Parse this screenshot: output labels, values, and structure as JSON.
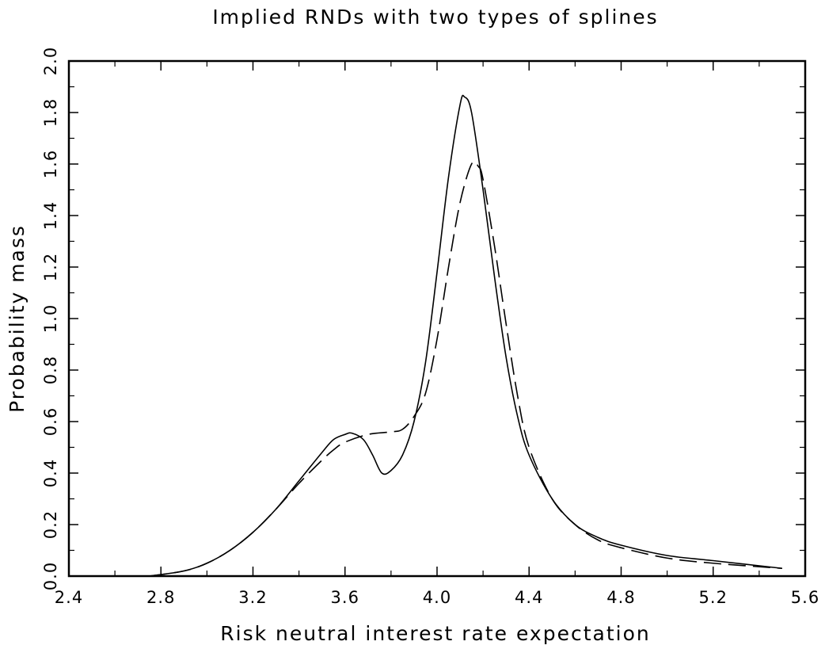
{
  "chart_data": {
    "type": "line",
    "title": "Implied RNDs with two types of splines",
    "xlabel": "Risk neutral interest rate expectation",
    "ylabel": "Probability mass",
    "xlim": [
      2.4,
      5.6
    ],
    "ylim": [
      0.0,
      2.0
    ],
    "x_ticks": [
      "2.4",
      "2.8",
      "3.2",
      "3.6",
      "4.0",
      "4.4",
      "4.8",
      "5.2",
      "5.6"
    ],
    "y_ticks": [
      "0.0",
      "0.2",
      "0.4",
      "0.6",
      "0.8",
      "1.0",
      "1.2",
      "1.4",
      "1.6",
      "1.8",
      "2.0"
    ],
    "grid": false,
    "series": [
      {
        "style": "solid",
        "x": [
          2.75,
          2.9,
          3.0,
          3.1,
          3.2,
          3.3,
          3.4,
          3.5,
          3.55,
          3.6,
          3.63,
          3.68,
          3.72,
          3.76,
          3.8,
          3.85,
          3.9,
          3.95,
          4.0,
          4.05,
          4.1,
          4.12,
          4.15,
          4.2,
          4.25,
          4.3,
          4.35,
          4.4,
          4.5,
          4.6,
          4.7,
          4.8,
          5.0,
          5.2,
          5.5
        ],
        "y": [
          0.0,
          0.02,
          0.05,
          0.1,
          0.17,
          0.26,
          0.37,
          0.48,
          0.53,
          0.55,
          0.555,
          0.53,
          0.47,
          0.4,
          0.41,
          0.47,
          0.6,
          0.83,
          1.18,
          1.55,
          1.83,
          1.86,
          1.8,
          1.5,
          1.16,
          0.85,
          0.62,
          0.47,
          0.3,
          0.2,
          0.15,
          0.12,
          0.08,
          0.06,
          0.03
        ]
      },
      {
        "style": "dashed",
        "x": [
          2.75,
          2.9,
          3.0,
          3.1,
          3.2,
          3.3,
          3.4,
          3.5,
          3.55,
          3.6,
          3.7,
          3.8,
          3.85,
          3.9,
          3.95,
          4.0,
          4.05,
          4.1,
          4.15,
          4.18,
          4.2,
          4.25,
          4.3,
          4.35,
          4.4,
          4.5,
          4.6,
          4.7,
          4.8,
          5.0,
          5.2,
          5.5
        ],
        "y": [
          0.0,
          0.02,
          0.05,
          0.1,
          0.17,
          0.26,
          0.36,
          0.45,
          0.49,
          0.52,
          0.55,
          0.56,
          0.57,
          0.62,
          0.71,
          0.92,
          1.2,
          1.45,
          1.6,
          1.59,
          1.54,
          1.28,
          0.98,
          0.7,
          0.5,
          0.3,
          0.2,
          0.14,
          0.11,
          0.07,
          0.05,
          0.03
        ]
      }
    ]
  }
}
